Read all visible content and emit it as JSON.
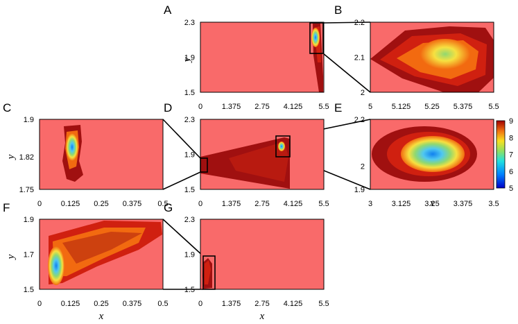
{
  "colors": {
    "background": "#f96a6a",
    "frame": "#000000",
    "dark_red": "#a01010",
    "red": "#d02010",
    "orange": "#f26a10",
    "yellow": "#f7e040",
    "green": "#90d870",
    "cyan": "#50c8f0",
    "blue": "#1080f0"
  },
  "chart_data": [
    {
      "type": "heatmap",
      "panel": "A",
      "xlim": [
        0,
        5.5
      ],
      "ylim": [
        1.5,
        2.3
      ],
      "xticks": [
        "0",
        "1.375",
        "2.75",
        "4.125",
        "5.5"
      ],
      "yticks": [
        "1.5",
        "1.9",
        "2.3"
      ],
      "xlabel": "",
      "ylabel": "y",
      "zoom_box": {
        "x": [
          5,
          5.5
        ],
        "y": [
          2,
          2.2
        ]
      }
    },
    {
      "type": "heatmap",
      "panel": "B",
      "xlim": [
        5,
        5.5
      ],
      "ylim": [
        2,
        2.2
      ],
      "xticks": [
        "5",
        "5.125",
        "5.25",
        "5.375",
        "5.5"
      ],
      "yticks": [
        "2",
        "2.1",
        "2.2"
      ],
      "xlabel": "",
      "ylabel": ""
    },
    {
      "type": "heatmap",
      "panel": "C",
      "xlim": [
        0,
        0.5
      ],
      "ylim": [
        1.75,
        1.9
      ],
      "xticks": [
        "0",
        "0.125",
        "0.25",
        "0.375",
        "0.5"
      ],
      "yticks": [
        "1.75",
        "1.82",
        "1.9"
      ],
      "xlabel": "",
      "ylabel": "y"
    },
    {
      "type": "heatmap",
      "panel": "D",
      "xlim": [
        0,
        5.5
      ],
      "ylim": [
        1.5,
        2.3
      ],
      "xticks": [
        "0",
        "1.375",
        "2.75",
        "4.125",
        "5.5"
      ],
      "yticks": [
        "1.5",
        "1.9",
        "2.3"
      ],
      "xlabel": "",
      "ylabel": "",
      "zoom_boxes": [
        {
          "x": [
            0,
            0.3
          ],
          "y": [
            1.75,
            1.9
          ]
        },
        {
          "x": [
            3.4,
            4.0
          ],
          "y": [
            1.9,
            2.2
          ]
        }
      ]
    },
    {
      "type": "heatmap",
      "panel": "E",
      "xlim": [
        3,
        3.5
      ],
      "ylim": [
        1.9,
        2.2
      ],
      "xticks": [
        "3",
        "3.125",
        "3.25",
        "3.375",
        "3.5"
      ],
      "yticks": [
        "1.9",
        "2",
        "2.2"
      ],
      "xlabel": "x",
      "ylabel": "",
      "colorbar": {
        "min": 5,
        "max": 9,
        "ticks": [
          "5",
          "6",
          "7",
          "8",
          "9"
        ]
      }
    },
    {
      "type": "heatmap",
      "panel": "F",
      "xlim": [
        0,
        0.5
      ],
      "ylim": [
        1.5,
        1.9
      ],
      "xticks": [
        "0",
        "0.125",
        "0.25",
        "0.375",
        "0.5"
      ],
      "yticks": [
        "1.5",
        "1.7",
        "1.9"
      ],
      "xlabel": "x",
      "ylabel": "y"
    },
    {
      "type": "heatmap",
      "panel": "G",
      "xlim": [
        0,
        5.5
      ],
      "ylim": [
        1.5,
        2.3
      ],
      "xticks": [
        "0",
        "1.375",
        "2.75",
        "4.125",
        "5.5"
      ],
      "yticks": [
        "1.5",
        "1.9",
        "2.3"
      ],
      "xlabel": "x",
      "ylabel": "",
      "zoom_box": {
        "x": [
          0,
          0.6
        ],
        "y": [
          1.5,
          1.9
        ]
      }
    }
  ]
}
